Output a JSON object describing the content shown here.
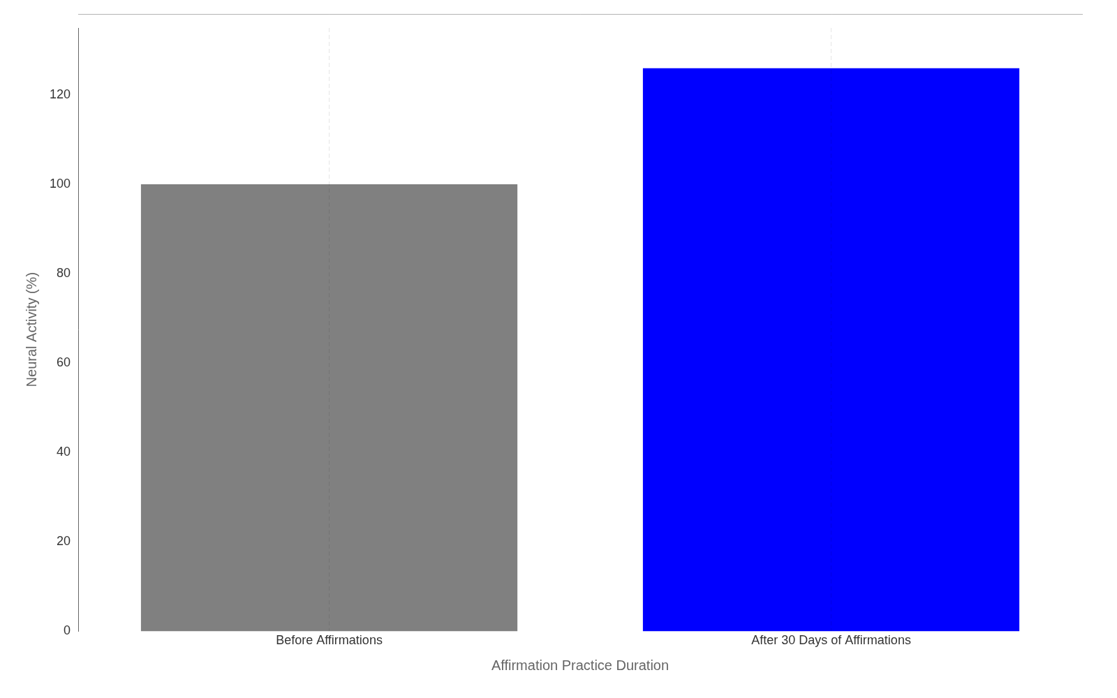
{
  "chart_data": {
    "type": "bar",
    "categories": [
      "Before Affirmations",
      "After 30 Days of Affirmations"
    ],
    "values": [
      100,
      126
    ],
    "colors": [
      "#808080",
      "#0000ff"
    ],
    "xlabel": "Affirmation Practice Duration",
    "ylabel": "Neural Activity (%)",
    "ylim": [
      0,
      135
    ],
    "yticks": [
      0,
      20,
      40,
      60,
      80,
      100,
      120
    ],
    "grid": "x"
  }
}
